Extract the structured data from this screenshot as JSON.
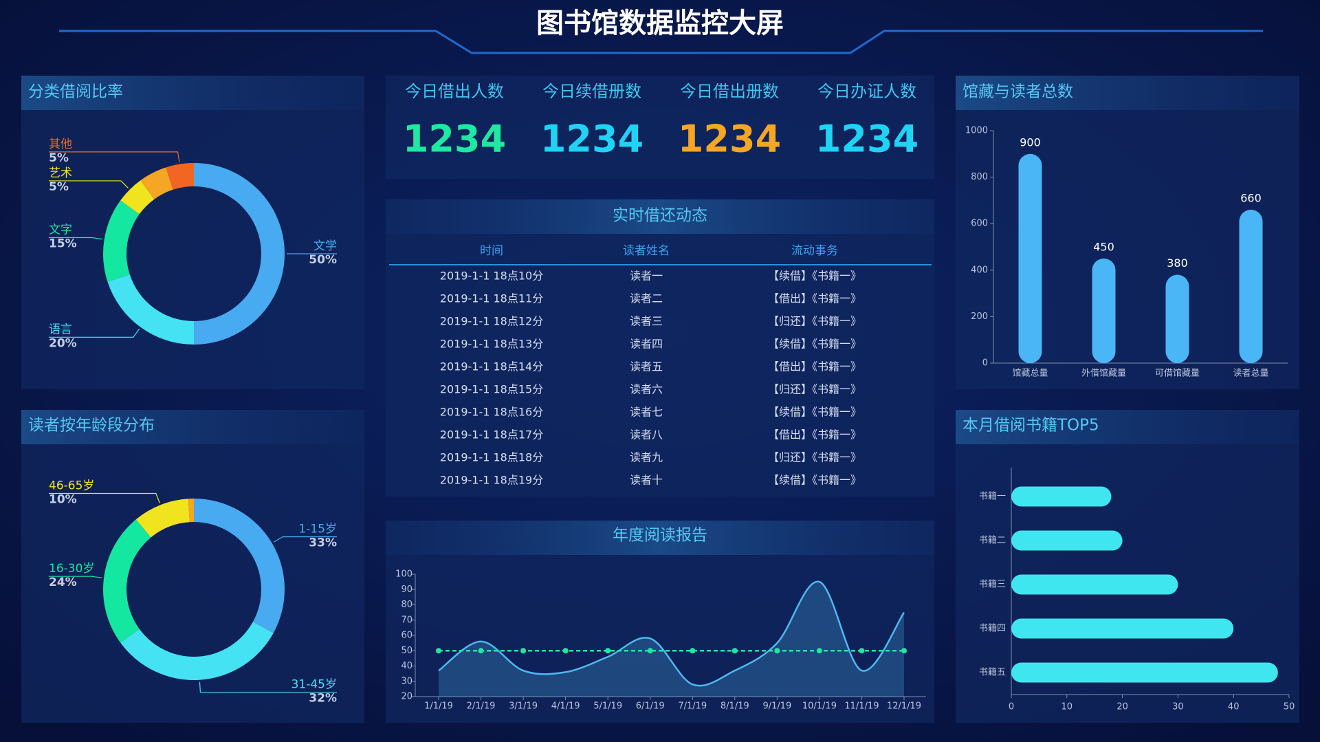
{
  "title": "图书馆数据监控大屏",
  "kpis": [
    {
      "label": "今日借出人数",
      "value": 1234,
      "color": "#1de9a0"
    },
    {
      "label": "今日续借册数",
      "value": 1234,
      "color": "#1fd3f5"
    },
    {
      "label": "今日借出册数",
      "value": 1234,
      "color": "#f5a623"
    },
    {
      "label": "今日办证人数",
      "value": 1234,
      "color": "#1fd3f5"
    }
  ],
  "table": {
    "title": "实时借还动态",
    "columns": [
      "时间",
      "读者姓名",
      "流动事务"
    ],
    "rows": [
      [
        "2019-1-1 18点10分",
        "读者一",
        "【续借】《书籍一》"
      ],
      [
        "2019-1-1 18点11分",
        "读者二",
        "【借出】《书籍一》"
      ],
      [
        "2019-1-1 18点12分",
        "读者三",
        "【归还】《书籍一》"
      ],
      [
        "2019-1-1 18点13分",
        "读者四",
        "【续借】《书籍一》"
      ],
      [
        "2019-1-1 18点14分",
        "读者五",
        "【借出】《书籍一》"
      ],
      [
        "2019-1-1 18点15分",
        "读者六",
        "【归还】《书籍一》"
      ],
      [
        "2019-1-1 18点16分",
        "读者七",
        "【续借】《书籍一》"
      ],
      [
        "2019-1-1 18点17分",
        "读者八",
        "【借出】《书籍一》"
      ],
      [
        "2019-1-1 18点18分",
        "读者九",
        "【归还】《书籍一》"
      ],
      [
        "2019-1-1 18点19分",
        "读者十",
        "【续借】《书籍一》"
      ]
    ]
  },
  "chart_data": [
    {
      "type": "donut",
      "title": "分类借阅比率",
      "categories": [
        "文学",
        "语言",
        "文字",
        "艺术",
        null,
        "其他"
      ],
      "values": [
        50,
        20,
        15,
        5,
        5,
        5
      ],
      "value_labels": [
        "50%",
        "20%",
        "15%",
        "5%",
        null,
        "5%"
      ],
      "colors": [
        "#48aaf0",
        "#44e2f2",
        "#14e8a0",
        "#f0e41e",
        "#f5a623",
        "#f26522"
      ]
    },
    {
      "type": "donut",
      "title": "读者按年龄段分布",
      "categories": [
        "1-15岁",
        "31-45岁",
        "16-30岁",
        "46-65岁",
        null
      ],
      "values": [
        33,
        32,
        24,
        10,
        1
      ],
      "value_labels": [
        "33%",
        "32%",
        "24%",
        "10%",
        null
      ],
      "colors": [
        "#48aaf0",
        "#44e2f2",
        "#14e8a0",
        "#f0e41e",
        "#f5a623"
      ]
    },
    {
      "type": "bar",
      "title": "馆藏与读者总数",
      "categories": [
        "馆藏总量",
        "外借馆藏量",
        "可借馆藏量",
        "读者总量"
      ],
      "values": [
        900,
        450,
        380,
        660
      ],
      "color": "#4ab6f6",
      "ylim": [
        0,
        1000
      ],
      "yticks": [
        0,
        200,
        400,
        600,
        800,
        1000
      ]
    },
    {
      "type": "bar",
      "orientation": "horizontal",
      "title": "本月借阅书籍TOP5",
      "categories": [
        "书籍一",
        "书籍二",
        "书籍三",
        "书籍四",
        "书籍五"
      ],
      "values": [
        18,
        20,
        30,
        40,
        48
      ],
      "color": "#3fe6f0",
      "xlim": [
        0,
        50
      ],
      "xticks": [
        0,
        10,
        20,
        30,
        40,
        50
      ]
    },
    {
      "type": "line",
      "title": "年度阅读报告",
      "categories": [
        "1/1/19",
        "2/1/19",
        "3/1/19",
        "4/1/19",
        "5/1/19",
        "6/1/19",
        "7/1/19",
        "8/1/19",
        "9/1/19",
        "10/1/19",
        "11/1/19",
        "12/1/19"
      ],
      "series": [
        {
          "color": "#4fb8f0",
          "area": true,
          "values": [
            37,
            56,
            37,
            36,
            46,
            58,
            28,
            37,
            55,
            95,
            37,
            75
          ]
        },
        {
          "color": "#1de9a0",
          "dashed": true,
          "markers": true,
          "values": [
            50,
            50,
            50,
            50,
            50,
            50,
            50,
            50,
            50,
            50,
            50,
            50
          ]
        }
      ],
      "ylim": [
        20,
        100
      ],
      "yticks": [
        20,
        30,
        40,
        50,
        60,
        70,
        80,
        90,
        100
      ]
    }
  ]
}
